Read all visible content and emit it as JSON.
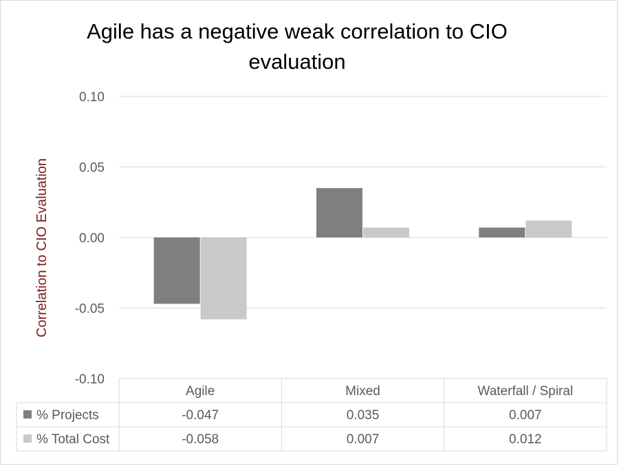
{
  "chart_data": {
    "type": "bar",
    "title_lines": [
      "Agile has a negative weak correlation to CIO",
      "evaluation"
    ],
    "ylabel": "Correlation to CIO Evaluation",
    "xlabel": "",
    "categories": [
      "Agile",
      "Mixed",
      "Waterfall / Spiral"
    ],
    "series": [
      {
        "name": "% Projects",
        "values": [
          -0.047,
          0.035,
          0.007
        ],
        "display": [
          "-0.047",
          "0.035",
          "0.007"
        ],
        "color": "#7f7f7f"
      },
      {
        "name": "% Total Cost",
        "values": [
          -0.058,
          0.007,
          0.012
        ],
        "display": [
          "-0.058",
          "0.007",
          "0.012"
        ],
        "color": "#c9c9c9"
      }
    ],
    "ylim": [
      -0.1,
      0.1
    ],
    "yticks": [
      0.1,
      0.05,
      0.0,
      -0.05,
      -0.1
    ],
    "ytick_labels": [
      "0.10",
      "0.05",
      "0.00",
      "-0.05",
      "-0.10"
    ],
    "grid": true,
    "legend": "data-table"
  }
}
